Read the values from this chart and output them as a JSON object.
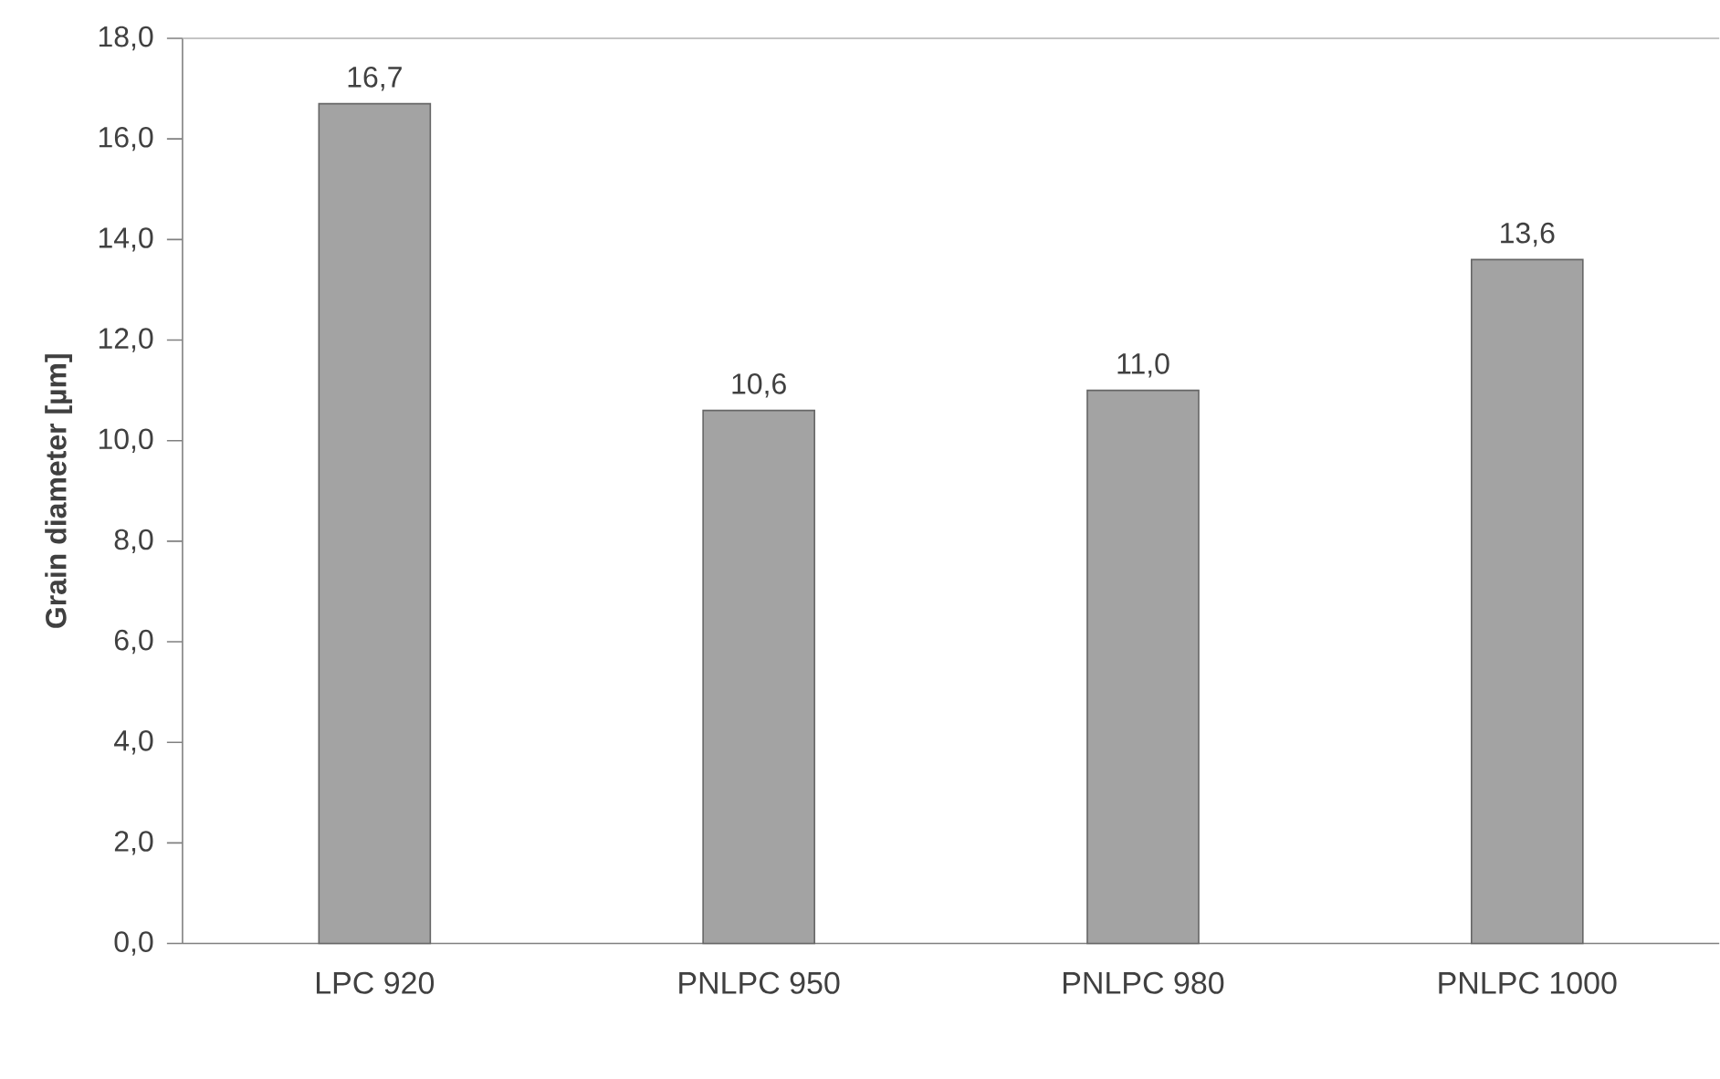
{
  "chart_data": {
    "type": "bar",
    "ylabel": "Grain diameter [µm]",
    "categories": [
      "LPC 920",
      "PNLPC 950",
      "PNLPC 980",
      "PNLPC 1000"
    ],
    "values": [
      16.7,
      10.6,
      11.0,
      13.6
    ],
    "value_labels": [
      "16,7",
      "10,6",
      "11,0",
      "13,6"
    ],
    "color": "#a3a3a3",
    "ylim": [
      0,
      18
    ],
    "yticks": [
      {
        "value": 0,
        "label": "0,0"
      },
      {
        "value": 2,
        "label": "2,0"
      },
      {
        "value": 4,
        "label": "4,0"
      },
      {
        "value": 6,
        "label": "6,0"
      },
      {
        "value": 8,
        "label": "8,0"
      },
      {
        "value": 10,
        "label": "10,0"
      },
      {
        "value": 12,
        "label": "12,0"
      },
      {
        "value": 14,
        "label": "14,0"
      },
      {
        "value": 16,
        "label": "16,0"
      },
      {
        "value": 18,
        "label": "18,0"
      }
    ]
  }
}
